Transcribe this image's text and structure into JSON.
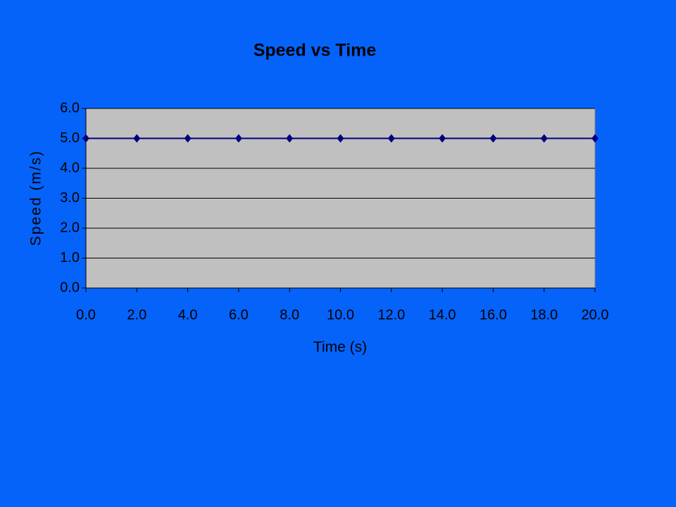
{
  "chart_data": {
    "type": "line",
    "title": "Speed vs Time",
    "x_label": "Time (s)",
    "y_label": "Speed (m/s)",
    "x": [
      0,
      2,
      4,
      6,
      8,
      10,
      12,
      14,
      16,
      18,
      20
    ],
    "values": [
      5,
      5,
      5,
      5,
      5,
      5,
      5,
      5,
      5,
      5,
      5
    ],
    "color": "#000080",
    "marker": "diamond",
    "xlim": [
      0,
      20
    ],
    "xticks": [
      {
        "value": 0,
        "label": "0.0"
      },
      {
        "value": 2,
        "label": "2.0"
      },
      {
        "value": 4,
        "label": "4.0"
      },
      {
        "value": 6,
        "label": "6.0"
      },
      {
        "value": 8,
        "label": "8.0"
      },
      {
        "value": 10,
        "label": "10.0"
      },
      {
        "value": 12,
        "label": "12.0"
      },
      {
        "value": 14,
        "label": "14.0"
      },
      {
        "value": 16,
        "label": "16.0"
      },
      {
        "value": 18,
        "label": "18.0"
      },
      {
        "value": 20,
        "label": "20.0"
      }
    ],
    "ylim": [
      0,
      6
    ],
    "yticks": [
      {
        "value": 0,
        "label": "0.0"
      },
      {
        "value": 1,
        "label": "1.0"
      },
      {
        "value": 2,
        "label": "2.0"
      },
      {
        "value": 3,
        "label": "3.0"
      },
      {
        "value": 4,
        "label": "4.0"
      },
      {
        "value": 5,
        "label": "5.0"
      },
      {
        "value": 6,
        "label": "6.0"
      }
    ],
    "grid": true,
    "plot_color": "#c0c0c0"
  }
}
